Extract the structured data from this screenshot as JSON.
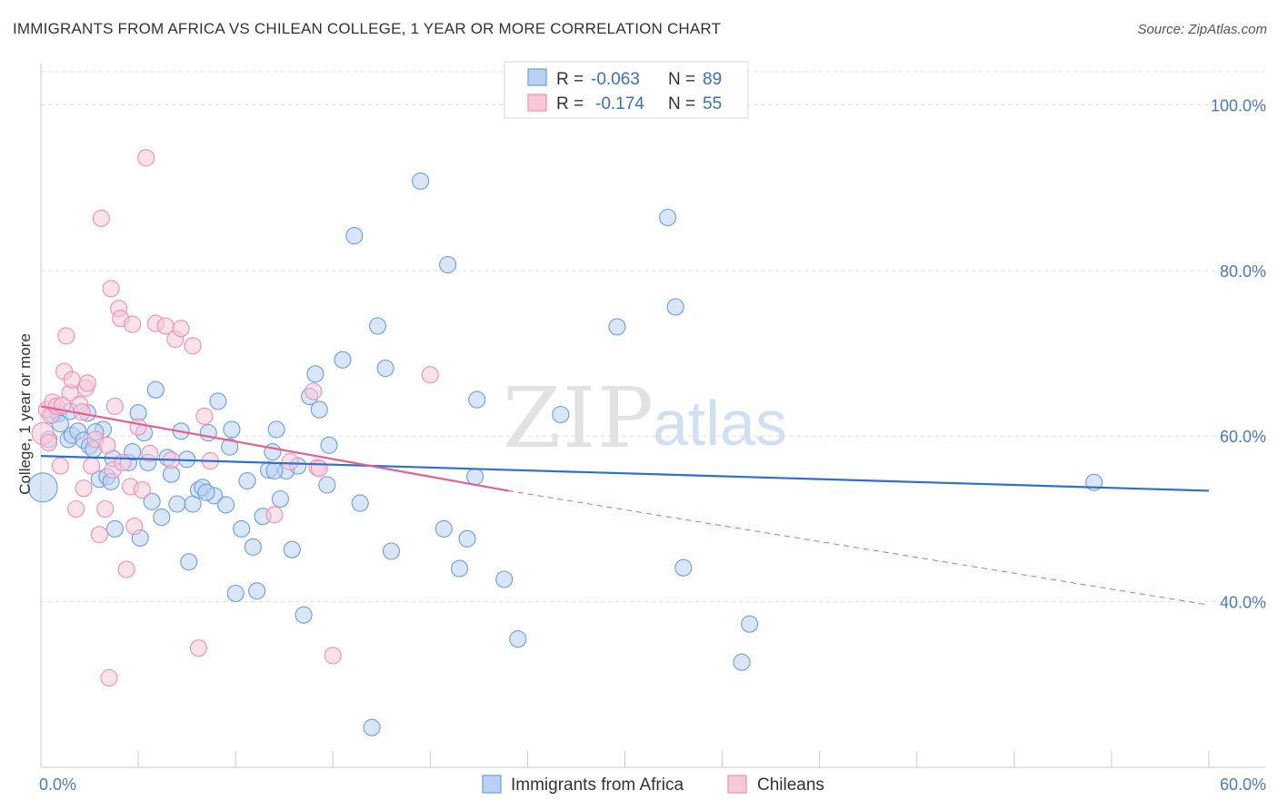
{
  "title": "IMMIGRANTS FROM AFRICA VS CHILEAN COLLEGE, 1 YEAR OR MORE CORRELATION CHART",
  "source": "Source: ZipAtlas.com",
  "watermark": {
    "part1": "ZIP",
    "part2": "atlas"
  },
  "colors": {
    "blue": "#6a9ee0",
    "blue_fill": "#b9d2f3",
    "blue_line": "#2f6fcf",
    "pink": "#ee8fb0",
    "pink_fill": "#f8c8d8",
    "pink_line": "#e0648f",
    "tick_text": "#4a7ac7",
    "grid": "#dddddd"
  },
  "legend": {
    "rows": [
      {
        "r_label": "R =",
        "r_value": "-0.063",
        "n_label": "N =",
        "n_value": "89"
      },
      {
        "r_label": "R =",
        "r_value": "-0.174",
        "n_label": "N =",
        "n_value": "55"
      }
    ]
  },
  "bottom_legend": [
    "Immigrants from Africa",
    "Chileans"
  ],
  "chart_data": {
    "type": "scatter",
    "title": "IMMIGRANTS FROM AFRICA VS CHILEAN COLLEGE, 1 YEAR OR MORE CORRELATION CHART",
    "xlabel": "",
    "ylabel": "College, 1 year or more",
    "xlim": [
      0,
      60
    ],
    "ylim": [
      20,
      104
    ],
    "x_tick_labels": [
      "0.0%",
      "60.0%"
    ],
    "y_ticks": [
      40,
      60,
      80,
      100
    ],
    "y_tick_labels": [
      "40.0%",
      "60.0%",
      "80.0%",
      "100.0%"
    ],
    "grid": true,
    "legend_position": "top-center",
    "series": [
      {
        "name": "Immigrants from Africa",
        "r": -0.063,
        "n": 89,
        "trend": {
          "x": [
            0,
            60
          ],
          "y": [
            57.6,
            53.4
          ]
        },
        "points": [
          [
            0.1,
            53.8
          ],
          [
            0.4,
            59.6
          ],
          [
            0.6,
            62.6
          ],
          [
            0.9,
            62.7
          ],
          [
            1.4,
            59.6
          ],
          [
            1.6,
            60.1
          ],
          [
            1.9,
            60.6
          ],
          [
            2.2,
            59.5
          ],
          [
            2.5,
            58.8
          ],
          [
            2.7,
            58.4
          ],
          [
            2.4,
            62.8
          ],
          [
            3.0,
            54.8
          ],
          [
            3.2,
            60.8
          ],
          [
            3.4,
            55.1
          ],
          [
            3.6,
            54.5
          ],
          [
            3.7,
            57.3
          ],
          [
            3.8,
            48.8
          ],
          [
            4.5,
            56.8
          ],
          [
            4.7,
            58.1
          ],
          [
            5.0,
            62.8
          ],
          [
            5.1,
            47.7
          ],
          [
            5.3,
            60.4
          ],
          [
            5.5,
            56.8
          ],
          [
            5.7,
            52.1
          ],
          [
            5.9,
            65.6
          ],
          [
            6.2,
            50.2
          ],
          [
            6.5,
            57.4
          ],
          [
            6.7,
            55.4
          ],
          [
            7.0,
            51.8
          ],
          [
            7.2,
            60.6
          ],
          [
            7.5,
            57.2
          ],
          [
            7.6,
            44.8
          ],
          [
            7.8,
            51.8
          ],
          [
            8.1,
            53.5
          ],
          [
            8.3,
            53.8
          ],
          [
            8.6,
            60.4
          ],
          [
            8.9,
            52.8
          ],
          [
            9.1,
            64.2
          ],
          [
            9.5,
            51.7
          ],
          [
            9.7,
            58.7
          ],
          [
            9.8,
            60.8
          ],
          [
            10.0,
            41.0
          ],
          [
            10.3,
            48.8
          ],
          [
            10.6,
            54.6
          ],
          [
            10.9,
            46.6
          ],
          [
            11.1,
            41.3
          ],
          [
            11.4,
            50.3
          ],
          [
            11.7,
            55.9
          ],
          [
            11.9,
            58.1
          ],
          [
            12.1,
            60.8
          ],
          [
            12.3,
            52.4
          ],
          [
            12.6,
            55.8
          ],
          [
            12.9,
            46.3
          ],
          [
            13.2,
            56.4
          ],
          [
            13.5,
            38.4
          ],
          [
            13.8,
            64.8
          ],
          [
            14.1,
            67.5
          ],
          [
            14.3,
            63.2
          ],
          [
            14.7,
            54.1
          ],
          [
            15.5,
            69.2
          ],
          [
            16.1,
            84.2
          ],
          [
            16.4,
            51.9
          ],
          [
            17.3,
            73.3
          ],
          [
            17.7,
            68.2
          ],
          [
            18.0,
            46.1
          ],
          [
            19.5,
            90.8
          ],
          [
            20.7,
            48.8
          ],
          [
            20.9,
            80.7
          ],
          [
            21.5,
            44.0
          ],
          [
            21.9,
            47.6
          ],
          [
            22.3,
            55.1
          ],
          [
            22.4,
            64.4
          ],
          [
            23.8,
            42.7
          ],
          [
            24.5,
            35.5
          ],
          [
            26.7,
            62.6
          ],
          [
            29.6,
            73.2
          ],
          [
            32.2,
            86.4
          ],
          [
            32.6,
            75.6
          ],
          [
            33.0,
            44.1
          ],
          [
            36.0,
            32.7
          ],
          [
            36.4,
            37.3
          ],
          [
            54.1,
            54.4
          ],
          [
            17.0,
            24.8
          ],
          [
            12.0,
            55.8
          ],
          [
            8.5,
            53.2
          ],
          [
            2.8,
            60.5
          ],
          [
            1.5,
            63.0
          ],
          [
            1.0,
            61.5
          ],
          [
            14.8,
            58.9
          ]
        ]
      },
      {
        "name": "Chileans",
        "r": -0.174,
        "n": 55,
        "trend": {
          "x": [
            0,
            24.0
          ],
          "y": [
            63.6,
            53.4
          ]
        },
        "trend_extended": {
          "x": [
            24.0,
            60
          ],
          "y": [
            53.4,
            39.6
          ]
        },
        "points": [
          [
            0.1,
            60.3
          ],
          [
            0.3,
            63.2
          ],
          [
            0.5,
            62.5
          ],
          [
            0.6,
            64.1
          ],
          [
            0.8,
            63.6
          ],
          [
            1.0,
            56.4
          ],
          [
            1.2,
            67.8
          ],
          [
            1.3,
            72.1
          ],
          [
            1.5,
            65.2
          ],
          [
            1.6,
            66.8
          ],
          [
            1.8,
            51.2
          ],
          [
            2.0,
            63.8
          ],
          [
            2.2,
            53.7
          ],
          [
            2.3,
            65.8
          ],
          [
            2.4,
            66.4
          ],
          [
            2.6,
            56.4
          ],
          [
            2.8,
            59.6
          ],
          [
            3.0,
            48.1
          ],
          [
            3.1,
            86.3
          ],
          [
            3.3,
            51.2
          ],
          [
            3.5,
            30.8
          ],
          [
            3.6,
            77.8
          ],
          [
            3.7,
            55.9
          ],
          [
            3.8,
            63.6
          ],
          [
            4.0,
            75.4
          ],
          [
            4.1,
            74.2
          ],
          [
            4.2,
            56.8
          ],
          [
            4.4,
            43.9
          ],
          [
            4.6,
            53.9
          ],
          [
            4.7,
            73.5
          ],
          [
            4.8,
            49.1
          ],
          [
            5.0,
            61.1
          ],
          [
            5.4,
            93.6
          ],
          [
            5.6,
            57.9
          ],
          [
            5.9,
            73.6
          ],
          [
            6.4,
            73.3
          ],
          [
            6.7,
            57.1
          ],
          [
            6.9,
            71.7
          ],
          [
            7.2,
            73.0
          ],
          [
            7.8,
            70.9
          ],
          [
            8.1,
            34.4
          ],
          [
            8.4,
            62.4
          ],
          [
            8.7,
            57.0
          ],
          [
            12.0,
            50.5
          ],
          [
            12.8,
            56.9
          ],
          [
            14.0,
            65.4
          ],
          [
            14.2,
            56.2
          ],
          [
            14.3,
            56.1
          ],
          [
            15.0,
            33.5
          ],
          [
            20.0,
            67.4
          ],
          [
            0.4,
            59.2
          ],
          [
            1.1,
            63.7
          ],
          [
            2.1,
            62.9
          ],
          [
            5.2,
            53.5
          ],
          [
            3.4,
            58.9
          ]
        ]
      }
    ]
  }
}
